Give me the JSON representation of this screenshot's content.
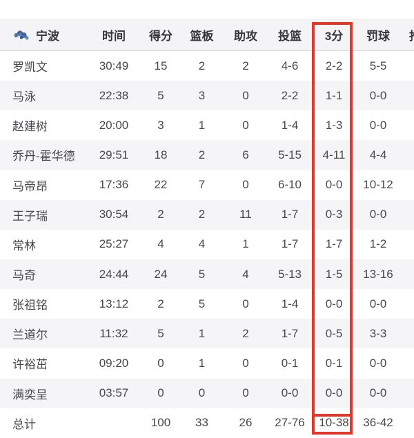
{
  "team": {
    "name": "宁波",
    "logo_icon": "team-crest",
    "logo_color": "#5b7fb0"
  },
  "table": {
    "columns": [
      {
        "key": "time",
        "label": "时间"
      },
      {
        "key": "points",
        "label": "得分"
      },
      {
        "key": "rebounds",
        "label": "篮板"
      },
      {
        "key": "assists",
        "label": "助攻"
      },
      {
        "key": "fg",
        "label": "投篮"
      },
      {
        "key": "three",
        "label": "3分",
        "highlighted": true
      },
      {
        "key": "ft",
        "label": "罚球"
      },
      {
        "key": "steals",
        "label": "抢断",
        "clipped": true
      }
    ],
    "rows": [
      {
        "name": "罗凯文",
        "time": "30:49",
        "points": "15",
        "rebounds": "2",
        "assists": "2",
        "fg": "4-6",
        "three": "2-2",
        "ft": "5-5"
      },
      {
        "name": "马泳",
        "time": "22:38",
        "points": "5",
        "rebounds": "3",
        "assists": "0",
        "fg": "2-2",
        "three": "1-1",
        "ft": "0-0"
      },
      {
        "name": "赵建树",
        "time": "20:00",
        "points": "3",
        "rebounds": "1",
        "assists": "0",
        "fg": "1-4",
        "three": "1-3",
        "ft": "0-0"
      },
      {
        "name": "乔丹-霍华德",
        "time": "29:51",
        "points": "18",
        "rebounds": "2",
        "assists": "6",
        "fg": "5-15",
        "three": "4-11",
        "ft": "4-4"
      },
      {
        "name": "马帝昂",
        "time": "17:36",
        "points": "22",
        "rebounds": "7",
        "assists": "0",
        "fg": "6-10",
        "three": "0-0",
        "ft": "10-12"
      },
      {
        "name": "王子瑞",
        "time": "30:54",
        "points": "2",
        "rebounds": "2",
        "assists": "11",
        "fg": "1-7",
        "three": "0-3",
        "ft": "0-0"
      },
      {
        "name": "常林",
        "time": "25:27",
        "points": "4",
        "rebounds": "4",
        "assists": "1",
        "fg": "1-7",
        "three": "1-7",
        "ft": "1-2"
      },
      {
        "name": "马奇",
        "time": "24:44",
        "points": "24",
        "rebounds": "5",
        "assists": "4",
        "fg": "5-13",
        "three": "1-5",
        "ft": "13-16"
      },
      {
        "name": "张祖铭",
        "time": "13:12",
        "points": "2",
        "rebounds": "5",
        "assists": "0",
        "fg": "1-4",
        "three": "0-0",
        "ft": "0-0"
      },
      {
        "name": "兰道尔",
        "time": "11:32",
        "points": "5",
        "rebounds": "1",
        "assists": "2",
        "fg": "1-7",
        "three": "0-5",
        "ft": "3-3"
      },
      {
        "name": "许裕茁",
        "time": "09:20",
        "points": "0",
        "rebounds": "1",
        "assists": "0",
        "fg": "0-1",
        "three": "0-1",
        "ft": "0-0"
      },
      {
        "name": "满奕呈",
        "time": "03:57",
        "points": "0",
        "rebounds": "0",
        "assists": "0",
        "fg": "0-0",
        "three": "0-0",
        "ft": "0-0"
      },
      {
        "name": "总计",
        "time": "",
        "points": "100",
        "rebounds": "33",
        "assists": "26",
        "fg": "27-76",
        "three": "10-38",
        "ft": "36-42",
        "is_total": true
      }
    ]
  },
  "highlight": {
    "target_column": "3分",
    "color": "#e2382b"
  }
}
